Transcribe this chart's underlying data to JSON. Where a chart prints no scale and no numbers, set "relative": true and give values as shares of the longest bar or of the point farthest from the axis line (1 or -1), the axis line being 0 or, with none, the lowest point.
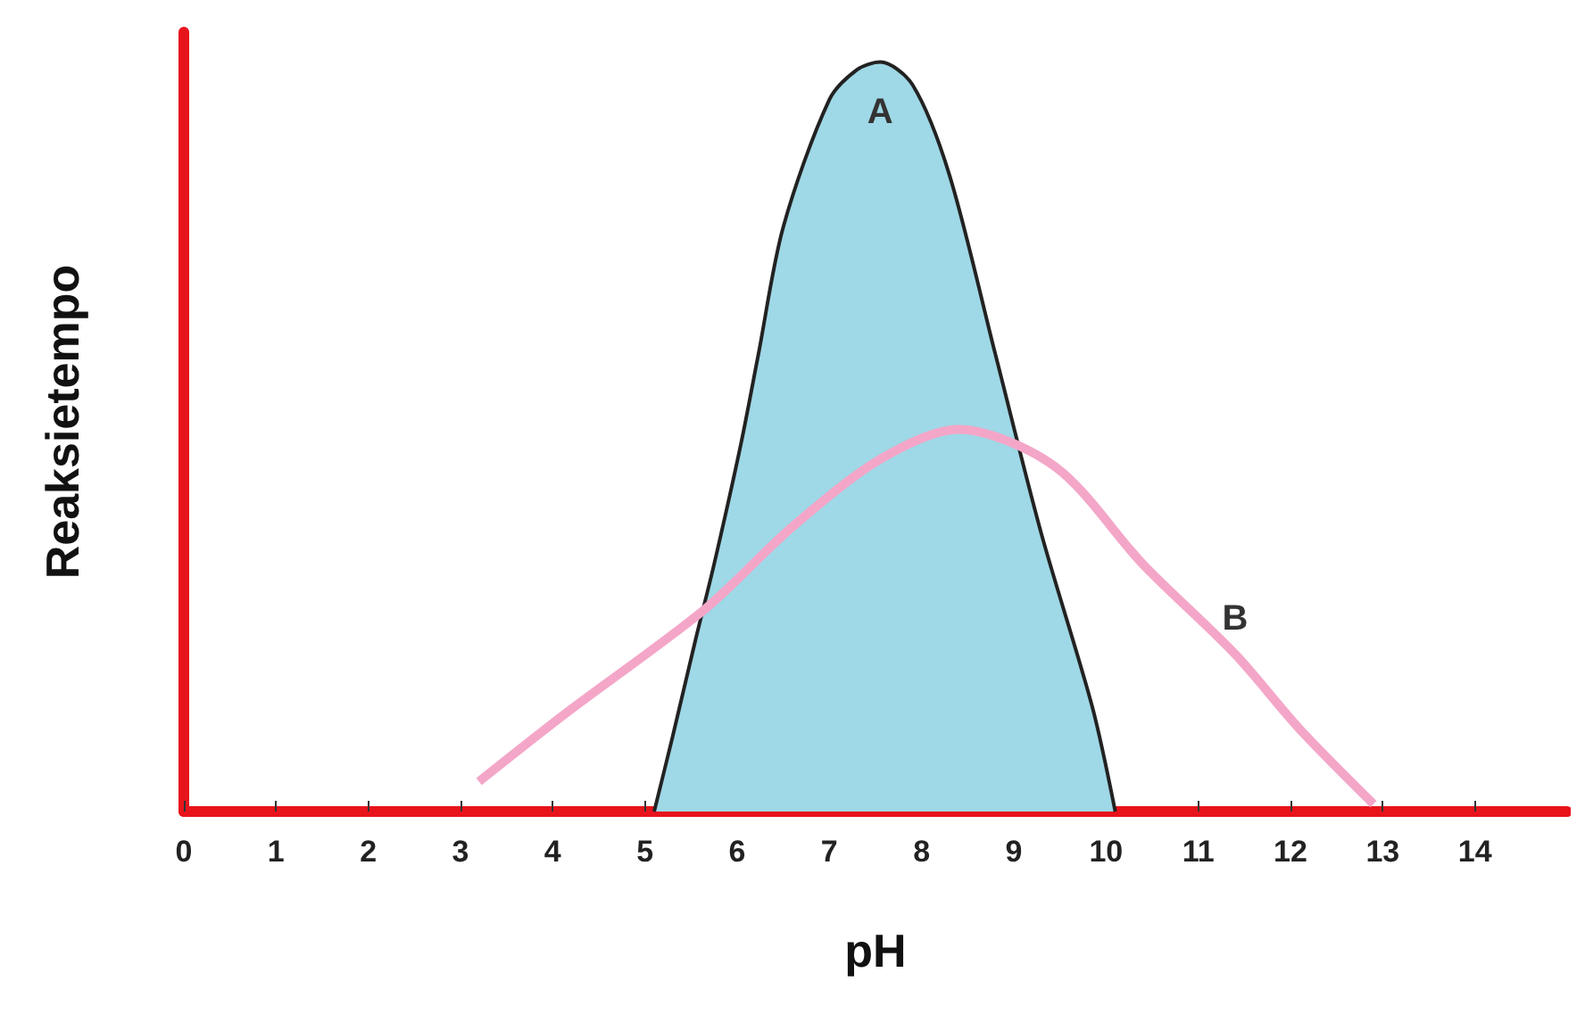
{
  "chart_data": {
    "type": "line",
    "relative": true,
    "xlabel": "pH",
    "ylabel": "Reaksietempo",
    "xlim": [
      0,
      15
    ],
    "xticks": [
      0,
      1,
      2,
      3,
      4,
      5,
      6,
      7,
      8,
      9,
      10,
      11,
      12,
      13,
      14
    ],
    "grid": false,
    "marker": "none",
    "series": [
      {
        "type": "area",
        "name": "A",
        "color": "#9fd8e6",
        "x": [
          5.1,
          5.3,
          5.55,
          5.75,
          6.04,
          6.23,
          6.5,
          7.0,
          7.3,
          7.55,
          7.9,
          8.3,
          8.8,
          9.3,
          9.85,
          10.1
        ],
        "values": [
          0,
          0.1,
          0.23,
          0.33,
          0.49,
          0.61,
          0.78,
          0.95,
          0.99,
          1,
          0.97,
          0.85,
          0.61,
          0.37,
          0.14,
          0
        ]
      },
      {
        "type": "line",
        "name": "B",
        "color": "#f4a6c8",
        "x": [
          3.2,
          4.13,
          5.65,
          6.6,
          7.55,
          8.4,
          9.45,
          10.4,
          11.4,
          12.1,
          12.9
        ],
        "values": [
          0.04,
          0.13,
          0.27,
          0.38,
          0.47,
          0.51,
          0.46,
          0.33,
          0.21,
          0.11,
          0.01
        ]
      }
    ]
  }
}
